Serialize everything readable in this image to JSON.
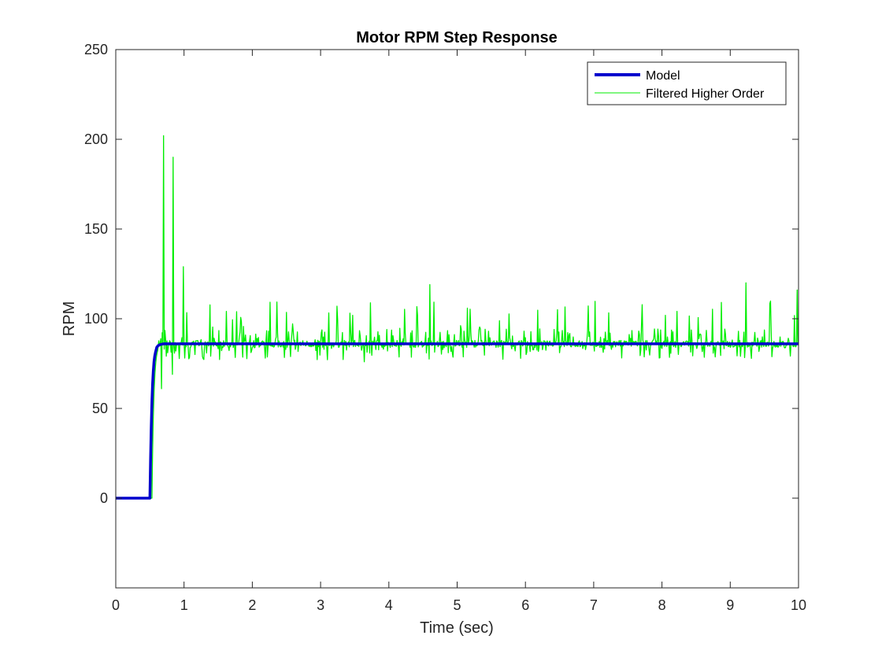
{
  "chart_data": {
    "type": "line",
    "title": "Motor RPM Step Response",
    "xlabel": "Time (sec)",
    "ylabel": "RPM",
    "xlim": [
      0,
      10
    ],
    "ylim": [
      -50,
      250
    ],
    "xticks": [
      0,
      1,
      2,
      3,
      4,
      5,
      6,
      7,
      8,
      9,
      10
    ],
    "yticks": [
      0,
      50,
      100,
      150,
      200,
      250
    ],
    "grid": false,
    "legend_position": "top-right",
    "series": [
      {
        "name": "Model",
        "color": "#0000cd",
        "style": "thick-line",
        "step_time": 0.5,
        "steady_state": 86,
        "x": [
          0,
          0.5,
          0.51,
          0.52,
          0.53,
          0.54,
          0.55,
          0.56,
          0.57,
          0.58,
          0.6,
          0.62,
          0.65,
          0.7,
          0.8,
          10
        ],
        "y": [
          0,
          0,
          22,
          40,
          54,
          64,
          71,
          76,
          79,
          81,
          84,
          85,
          85.6,
          86,
          86,
          86
        ]
      },
      {
        "name": "Filtered Higher Order",
        "color": "#00ee00",
        "style": "thin-line",
        "step_time": 0.53,
        "steady_state": 86,
        "peaks": [
          {
            "x": 0.7,
            "y": 202
          },
          {
            "x": 0.84,
            "y": 190
          },
          {
            "x": 0.99,
            "y": 129
          },
          {
            "x": 3.64,
            "y": 118
          },
          {
            "x": 4.6,
            "y": 119
          },
          {
            "x": 9.23,
            "y": 120
          },
          {
            "x": 9.98,
            "y": 116
          }
        ],
        "dips": [
          {
            "x": 0.67,
            "y": 61
          },
          {
            "x": 0.83,
            "y": 69
          },
          {
            "x": 3.64,
            "y": 76
          }
        ]
      }
    ]
  }
}
